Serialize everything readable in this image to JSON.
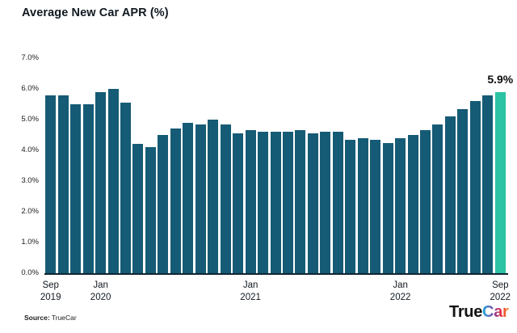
{
  "chart_data": {
    "type": "bar",
    "title": "Average New Car APR (%)",
    "x": [
      "Sep 2019",
      "Oct 2019",
      "Nov 2019",
      "Dec 2019",
      "Jan 2020",
      "Feb 2020",
      "Mar 2020",
      "Apr 2020",
      "May 2020",
      "Jun 2020",
      "Jul 2020",
      "Aug 2020",
      "Sep 2020",
      "Oct 2020",
      "Nov 2020",
      "Dec 2020",
      "Jan 2021",
      "Feb 2021",
      "Mar 2021",
      "Apr 2021",
      "May 2021",
      "Jun 2021",
      "Jul 2021",
      "Aug 2021",
      "Sep 2021",
      "Oct 2021",
      "Nov 2021",
      "Dec 2021",
      "Jan 2022",
      "Feb 2022",
      "Mar 2022",
      "Apr 2022",
      "May 2022",
      "Jun 2022",
      "Jul 2022",
      "Aug 2022",
      "Sep 2022"
    ],
    "values": [
      5.8,
      5.8,
      5.5,
      5.5,
      5.9,
      6.0,
      5.55,
      4.2,
      4.1,
      4.5,
      4.7,
      4.9,
      4.85,
      5.0,
      4.85,
      4.55,
      4.65,
      4.6,
      4.6,
      4.6,
      4.65,
      4.55,
      4.6,
      4.6,
      4.35,
      4.4,
      4.35,
      4.25,
      4.4,
      4.5,
      4.65,
      4.85,
      5.1,
      5.35,
      5.6,
      5.8,
      5.9
    ],
    "ylim": [
      0,
      7
    ],
    "y_tick_labels": [
      "7.0%",
      "6.0%",
      "5.0%",
      "4.0%",
      "3.0%",
      "2.0%",
      "1.0%",
      "0.0%"
    ],
    "x_tick_labels": [
      {
        "month": "Sep",
        "year": "2019",
        "bar_index": 0
      },
      {
        "month": "Jan",
        "year": "2020",
        "bar_index": 4
      },
      {
        "month": "Jan",
        "year": "2021",
        "bar_index": 16
      },
      {
        "month": "Jan",
        "year": "2022",
        "bar_index": 28
      },
      {
        "month": "Sep",
        "year": "2022",
        "bar_index": 36
      }
    ],
    "annotation": {
      "text": "5.9%",
      "value": 5.9,
      "bar_index": 36
    },
    "bar_color": "#155B75",
    "highlight_color": "#2BC3A3",
    "highlight_index": 36,
    "grid": false,
    "legend": "none"
  },
  "footer": {
    "source_label": "Source:",
    "source_value": "TrueCar",
    "logo": {
      "part1": "True",
      "part2": "Car"
    }
  }
}
